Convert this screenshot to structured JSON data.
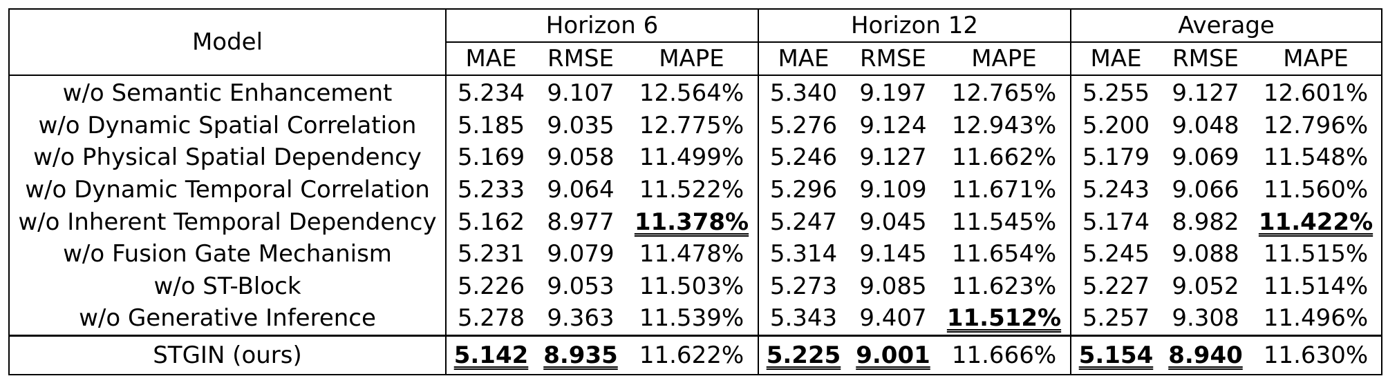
{
  "header": {
    "model_label": "Model",
    "groups": [
      "Horizon 6",
      "Horizon 12",
      "Average"
    ],
    "metrics": [
      "MAE",
      "RMSE",
      "MAPE"
    ]
  },
  "rows": [
    {
      "model": "w/o Semantic Enhancement",
      "values": [
        "5.234",
        "9.107",
        "12.564%",
        "5.340",
        "9.197",
        "12.765%",
        "5.255",
        "9.127",
        "12.601%"
      ],
      "best": []
    },
    {
      "model": "w/o Dynamic Spatial Correlation",
      "values": [
        "5.185",
        "9.035",
        "12.775%",
        "5.276",
        "9.124",
        "12.943%",
        "5.200",
        "9.048",
        "12.796%"
      ],
      "best": []
    },
    {
      "model": "w/o Physical Spatial Dependency",
      "values": [
        "5.169",
        "9.058",
        "11.499%",
        "5.246",
        "9.127",
        "11.662%",
        "5.179",
        "9.069",
        "11.548%"
      ],
      "best": []
    },
    {
      "model": "w/o Dynamic Temporal Correlation",
      "values": [
        "5.233",
        "9.064",
        "11.522%",
        "5.296",
        "9.109",
        "11.671%",
        "5.243",
        "9.066",
        "11.560%"
      ],
      "best": []
    },
    {
      "model": "w/o Inherent Temporal Dependency",
      "values": [
        "5.162",
        "8.977",
        "11.378%",
        "5.247",
        "9.045",
        "11.545%",
        "5.174",
        "8.982",
        "11.422%"
      ],
      "best": [
        2,
        8
      ]
    },
    {
      "model": "w/o Fusion Gate Mechanism",
      "values": [
        "5.231",
        "9.079",
        "11.478%",
        "5.314",
        "9.145",
        "11.654%",
        "5.245",
        "9.088",
        "11.515%"
      ],
      "best": []
    },
    {
      "model": "w/o ST-Block",
      "values": [
        "5.226",
        "9.053",
        "11.503%",
        "5.273",
        "9.085",
        "11.623%",
        "5.227",
        "9.052",
        "11.514%"
      ],
      "best": []
    },
    {
      "model": "w/o Generative Inference",
      "values": [
        "5.278",
        "9.363",
        "11.539%",
        "5.343",
        "9.407",
        "11.512%",
        "5.257",
        "9.308",
        "11.496%"
      ],
      "best": [
        5
      ]
    }
  ],
  "final_row": {
    "model": "STGIN (ours)",
    "values": [
      "5.142",
      "8.935",
      "11.622%",
      "5.225",
      "9.001",
      "11.666%",
      "5.154",
      "8.940",
      "11.630%"
    ],
    "best": [
      0,
      1,
      3,
      4,
      6,
      7
    ]
  }
}
